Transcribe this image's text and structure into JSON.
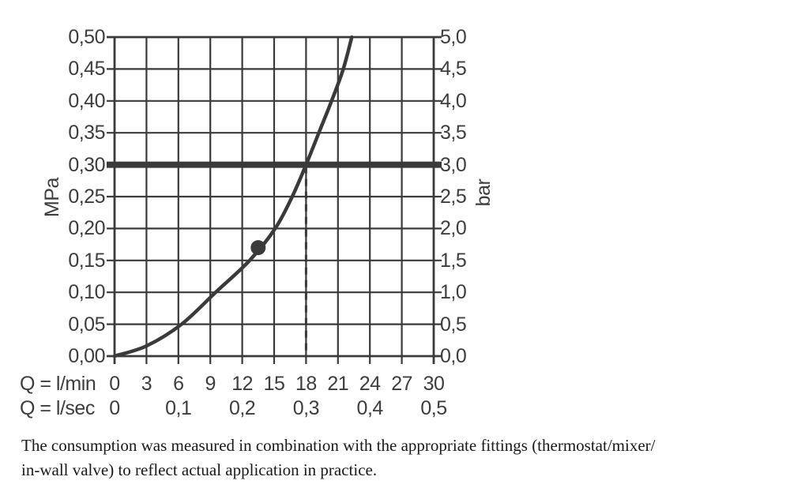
{
  "colors": {
    "background": "#ffffff",
    "chart_stroke": "#3a3a3a",
    "axis_text": "#3d3d3d",
    "caption_text": "#191919"
  },
  "chart_data": {
    "type": "line",
    "title": "",
    "grid": "on",
    "y_left_axis": {
      "label": "MPa",
      "range": [
        0,
        0.5
      ],
      "tick_step": 0.05,
      "tick_labels": [
        "0,50",
        "0,45",
        "0,40",
        "0,35",
        "0,30",
        "0,25",
        "0,20",
        "0,15",
        "0,10",
        "0,05",
        "0,00"
      ]
    },
    "y_right_axis": {
      "label": "bar",
      "range": [
        0,
        5
      ],
      "tick_step": 0.5,
      "tick_labels": [
        "5,0",
        "4,5",
        "4,0",
        "3,5",
        "3,0",
        "2,5",
        "2,0",
        "1,5",
        "1,0",
        "0,5",
        "0,0"
      ]
    },
    "x_axis_rows": [
      {
        "label": "Q = l/min",
        "range": [
          0,
          30
        ],
        "tick_labels": [
          "0",
          "3",
          "6",
          "9",
          "12",
          "15",
          "18",
          "21",
          "24",
          "27",
          "30"
        ],
        "tick_values_lmin": [
          0,
          3,
          6,
          9,
          12,
          15,
          18,
          21,
          24,
          27,
          30
        ]
      },
      {
        "label": "Q = l/sec",
        "range": [
          0,
          0.5
        ],
        "tick_labels": [
          "0",
          "0,1",
          "0,2",
          "0,3",
          "0,4",
          "0,5"
        ],
        "tick_values_lmin": [
          0,
          6,
          12,
          18,
          24,
          30
        ]
      }
    ],
    "series": [
      {
        "name": "flow-pressure-curve",
        "points_lmin_mpa": [
          [
            0,
            0
          ],
          [
            3,
            0.016
          ],
          [
            6.3,
            0.05
          ],
          [
            9.5,
            0.1
          ],
          [
            12.7,
            0.15
          ],
          [
            15.1,
            0.2
          ],
          [
            16.7,
            0.25
          ],
          [
            18,
            0.3
          ],
          [
            19.2,
            0.35
          ],
          [
            20.4,
            0.4
          ],
          [
            21.5,
            0.45
          ],
          [
            22.3,
            0.5
          ]
        ]
      }
    ],
    "annotations": {
      "bold_hline": {
        "mpa": 0.3,
        "bar": 3.0
      },
      "dashed_vline": {
        "lmin": 18,
        "lsec": 0.3
      },
      "marker_point": {
        "lmin": 13.5,
        "mpa": 0.17
      }
    }
  },
  "caption": {
    "line1": "The consumption was measured in combination with the appropriate fittings (thermostat/mixer/",
    "line2": "in-wall valve) to reflect actual application in practice."
  }
}
